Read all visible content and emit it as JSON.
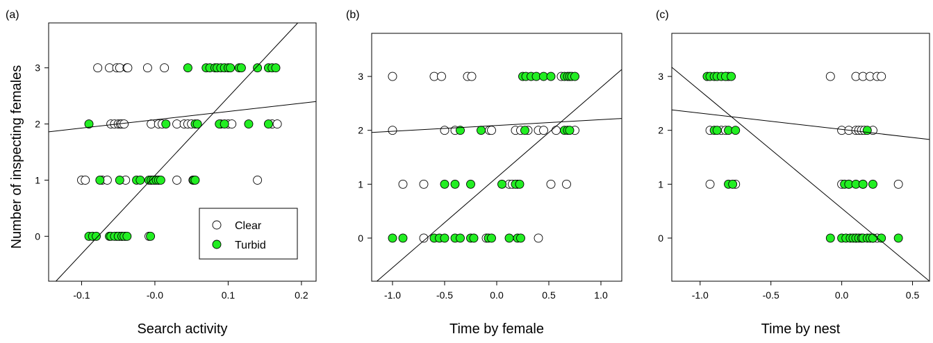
{
  "figure": {
    "ylabel": "Number of inspecting females",
    "colors": {
      "clear": "#ffffff",
      "turbid": "#22ee22",
      "stroke": "#000000"
    }
  },
  "legend": {
    "entries": [
      {
        "name": "Clear",
        "fill": "#ffffff"
      },
      {
        "name": "Turbid",
        "fill": "#22ee22"
      }
    ]
  },
  "chart_data": [
    {
      "type": "scatter",
      "panel_label": "(a)",
      "xlabel": "Search activity",
      "ylabel": "Number of inspecting females",
      "xlim": [
        -0.145,
        0.22
      ],
      "ylim": [
        -0.8,
        3.8
      ],
      "xticks": [
        -0.1,
        0.0,
        0.1,
        0.2
      ],
      "xtick_labels": [
        "-0.1",
        "-0.0",
        "0.1",
        "0.2"
      ],
      "yticks": [
        0,
        1,
        2,
        3
      ],
      "ytick_labels": [
        "0",
        "1",
        "2",
        "3"
      ],
      "legend_position": "bottom-right",
      "series": [
        {
          "name": "Clear",
          "fill": "#ffffff",
          "points": [
            [
              -0.078,
              3
            ],
            [
              -0.062,
              3
            ],
            [
              -0.052,
              3
            ],
            [
              -0.048,
              3
            ],
            [
              -0.038,
              3
            ],
            [
              -0.037,
              3
            ],
            [
              -0.01,
              3
            ],
            [
              0.013,
              3
            ],
            [
              -0.06,
              2
            ],
            [
              -0.055,
              2
            ],
            [
              -0.05,
              2
            ],
            [
              -0.047,
              2
            ],
            [
              -0.045,
              2
            ],
            [
              -0.042,
              2
            ],
            [
              -0.005,
              2
            ],
            [
              0.005,
              2
            ],
            [
              0.01,
              2
            ],
            [
              0.03,
              2
            ],
            [
              0.04,
              2
            ],
            [
              0.045,
              2
            ],
            [
              0.05,
              2
            ],
            [
              0.09,
              2
            ],
            [
              0.1,
              2
            ],
            [
              0.105,
              2
            ],
            [
              0.16,
              2
            ],
            [
              0.167,
              2
            ],
            [
              -0.1,
              1
            ],
            [
              -0.095,
              1
            ],
            [
              -0.072,
              1
            ],
            [
              -0.065,
              1
            ],
            [
              -0.04,
              1
            ],
            [
              -0.005,
              1
            ],
            [
              0.0,
              1
            ],
            [
              0.005,
              1
            ],
            [
              0.03,
              1
            ],
            [
              0.052,
              1
            ],
            [
              0.14,
              1
            ],
            [
              -0.052,
              0
            ],
            [
              -0.048,
              0
            ],
            [
              -0.045,
              0
            ],
            [
              -0.04,
              0
            ],
            [
              -0.008,
              0
            ]
          ]
        },
        {
          "name": "Turbid",
          "fill": "#22ee22",
          "points": [
            [
              0.045,
              3
            ],
            [
              0.07,
              3
            ],
            [
              0.075,
              3
            ],
            [
              0.082,
              3
            ],
            [
              0.085,
              3
            ],
            [
              0.09,
              3
            ],
            [
              0.095,
              3
            ],
            [
              0.1,
              3
            ],
            [
              0.103,
              3
            ],
            [
              0.115,
              3
            ],
            [
              0.118,
              3
            ],
            [
              0.14,
              3
            ],
            [
              0.155,
              3
            ],
            [
              0.16,
              3
            ],
            [
              0.165,
              3
            ],
            [
              -0.09,
              2
            ],
            [
              0.015,
              2
            ],
            [
              0.055,
              2
            ],
            [
              0.058,
              2
            ],
            [
              0.088,
              2
            ],
            [
              0.095,
              2
            ],
            [
              0.128,
              2
            ],
            [
              0.155,
              2
            ],
            [
              -0.075,
              1
            ],
            [
              -0.048,
              1
            ],
            [
              -0.025,
              1
            ],
            [
              -0.02,
              1
            ],
            [
              -0.008,
              1
            ],
            [
              -0.005,
              1
            ],
            [
              -0.002,
              1
            ],
            [
              0.002,
              1
            ],
            [
              0.005,
              1
            ],
            [
              0.008,
              1
            ],
            [
              0.053,
              1
            ],
            [
              0.055,
              1
            ],
            [
              -0.09,
              0
            ],
            [
              -0.085,
              0
            ],
            [
              -0.08,
              0
            ],
            [
              -0.062,
              0
            ],
            [
              -0.06,
              0
            ],
            [
              -0.055,
              0
            ],
            [
              -0.05,
              0
            ],
            [
              -0.045,
              0
            ],
            [
              -0.042,
              0
            ],
            [
              -0.038,
              0
            ],
            [
              -0.006,
              0
            ]
          ]
        }
      ],
      "fit_lines": [
        {
          "name": "Clear",
          "x": [
            -0.145,
            0.22
          ],
          "y": [
            1.86,
            2.4
          ]
        },
        {
          "name": "Turbid",
          "x": [
            -0.135,
            0.195
          ],
          "y": [
            -0.8,
            3.8
          ]
        }
      ]
    },
    {
      "type": "scatter",
      "panel_label": "(b)",
      "xlabel": "Time by female",
      "ylabel": "",
      "xlim": [
        -1.2,
        1.2
      ],
      "ylim": [
        -0.8,
        3.8
      ],
      "xticks": [
        -1.0,
        -0.5,
        0.0,
        0.5,
        1.0
      ],
      "xtick_labels": [
        "-1.0",
        "-0.5",
        "0.0",
        "0.5",
        "1.0"
      ],
      "yticks": [
        0,
        1,
        2,
        3
      ],
      "ytick_labels": [
        "0",
        "1",
        "2",
        "3"
      ],
      "series": [
        {
          "name": "Clear",
          "fill": "#ffffff",
          "points": [
            [
              -1.0,
              3
            ],
            [
              -0.6,
              3
            ],
            [
              -0.53,
              3
            ],
            [
              -0.28,
              3
            ],
            [
              -0.24,
              3
            ],
            [
              0.62,
              3
            ],
            [
              -1.0,
              2
            ],
            [
              -0.5,
              2
            ],
            [
              -0.4,
              2
            ],
            [
              -0.07,
              2
            ],
            [
              -0.05,
              2
            ],
            [
              0.18,
              2
            ],
            [
              0.23,
              2
            ],
            [
              0.3,
              2
            ],
            [
              0.4,
              2
            ],
            [
              0.45,
              2
            ],
            [
              0.57,
              2
            ],
            [
              0.75,
              2
            ],
            [
              -0.9,
              1
            ],
            [
              -0.7,
              1
            ],
            [
              0.12,
              1
            ],
            [
              0.15,
              1
            ],
            [
              0.2,
              1
            ],
            [
              0.52,
              1
            ],
            [
              0.67,
              1
            ],
            [
              -0.7,
              0
            ],
            [
              -0.1,
              0
            ],
            [
              0.4,
              0
            ]
          ]
        },
        {
          "name": "Turbid",
          "fill": "#22ee22",
          "points": [
            [
              0.25,
              3
            ],
            [
              0.28,
              3
            ],
            [
              0.33,
              3
            ],
            [
              0.38,
              3
            ],
            [
              0.45,
              3
            ],
            [
              0.52,
              3
            ],
            [
              0.65,
              3
            ],
            [
              0.68,
              3
            ],
            [
              0.7,
              3
            ],
            [
              0.72,
              3
            ],
            [
              0.75,
              3
            ],
            [
              -0.35,
              2
            ],
            [
              -0.15,
              2
            ],
            [
              0.27,
              2
            ],
            [
              0.65,
              2
            ],
            [
              0.68,
              2
            ],
            [
              0.7,
              2
            ],
            [
              -0.5,
              1
            ],
            [
              -0.4,
              1
            ],
            [
              -0.25,
              1
            ],
            [
              0.05,
              1
            ],
            [
              0.18,
              1
            ],
            [
              0.22,
              1
            ],
            [
              -1.0,
              0
            ],
            [
              -0.9,
              0
            ],
            [
              -0.6,
              0
            ],
            [
              -0.55,
              0
            ],
            [
              -0.5,
              0
            ],
            [
              -0.4,
              0
            ],
            [
              -0.35,
              0
            ],
            [
              -0.25,
              0
            ],
            [
              -0.22,
              0
            ],
            [
              -0.08,
              0
            ],
            [
              -0.05,
              0
            ],
            [
              0.12,
              0
            ],
            [
              0.2,
              0
            ],
            [
              0.23,
              0
            ]
          ]
        }
      ],
      "fit_lines": [
        {
          "name": "Clear",
          "x": [
            -1.2,
            1.2
          ],
          "y": [
            1.96,
            2.22
          ]
        },
        {
          "name": "Turbid",
          "x": [
            -1.15,
            1.2
          ],
          "y": [
            -0.8,
            3.13
          ]
        }
      ]
    },
    {
      "type": "scatter",
      "panel_label": "(c)",
      "xlabel": "Time by nest",
      "ylabel": "",
      "xlim": [
        -1.2,
        0.62
      ],
      "ylim": [
        -0.8,
        3.8
      ],
      "xticks": [
        -1.0,
        -0.5,
        0.0,
        0.5
      ],
      "xtick_labels": [
        "-1.0",
        "-0.5",
        "0.0",
        "0.5"
      ],
      "yticks": [
        0,
        1,
        2,
        3
      ],
      "ytick_labels": [
        "0",
        "1",
        "2",
        "3"
      ],
      "series": [
        {
          "name": "Clear",
          "fill": "#ffffff",
          "points": [
            [
              -0.82,
              3
            ],
            [
              -0.8,
              3
            ],
            [
              -0.08,
              3
            ],
            [
              0.1,
              3
            ],
            [
              0.15,
              3
            ],
            [
              0.2,
              3
            ],
            [
              0.25,
              3
            ],
            [
              0.28,
              3
            ],
            [
              -0.93,
              2
            ],
            [
              -0.85,
              2
            ],
            [
              -0.82,
              2
            ],
            [
              0.0,
              2
            ],
            [
              0.05,
              2
            ],
            [
              0.1,
              2
            ],
            [
              0.12,
              2
            ],
            [
              0.14,
              2
            ],
            [
              0.16,
              2
            ],
            [
              0.22,
              2
            ],
            [
              -0.93,
              1
            ],
            [
              -0.75,
              1
            ],
            [
              0.0,
              1
            ],
            [
              0.05,
              1
            ],
            [
              0.15,
              1
            ],
            [
              0.4,
              1
            ],
            [
              0.1,
              0
            ],
            [
              0.22,
              0
            ],
            [
              0.25,
              0
            ]
          ]
        },
        {
          "name": "Turbid",
          "fill": "#22ee22",
          "points": [
            [
              -0.95,
              3
            ],
            [
              -0.93,
              3
            ],
            [
              -0.9,
              3
            ],
            [
              -0.88,
              3
            ],
            [
              -0.85,
              3
            ],
            [
              -0.82,
              3
            ],
            [
              -0.78,
              3
            ],
            [
              -0.9,
              2
            ],
            [
              -0.88,
              2
            ],
            [
              -0.8,
              2
            ],
            [
              -0.75,
              2
            ],
            [
              0.18,
              2
            ],
            [
              -0.8,
              1
            ],
            [
              -0.77,
              1
            ],
            [
              0.02,
              1
            ],
            [
              0.05,
              1
            ],
            [
              0.1,
              1
            ],
            [
              0.15,
              1
            ],
            [
              0.22,
              1
            ],
            [
              -0.08,
              0
            ],
            [
              0.0,
              0
            ],
            [
              0.03,
              0
            ],
            [
              0.06,
              0
            ],
            [
              0.08,
              0
            ],
            [
              0.1,
              0
            ],
            [
              0.12,
              0
            ],
            [
              0.14,
              0
            ],
            [
              0.15,
              0
            ],
            [
              0.18,
              0
            ],
            [
              0.2,
              0
            ],
            [
              0.22,
              0
            ],
            [
              0.28,
              0
            ],
            [
              0.4,
              0
            ]
          ]
        }
      ],
      "fit_lines": [
        {
          "name": "Clear",
          "x": [
            -1.2,
            0.62
          ],
          "y": [
            2.38,
            1.83
          ]
        },
        {
          "name": "Turbid",
          "x": [
            -1.2,
            0.62
          ],
          "y": [
            3.17,
            -0.8
          ]
        }
      ]
    }
  ]
}
